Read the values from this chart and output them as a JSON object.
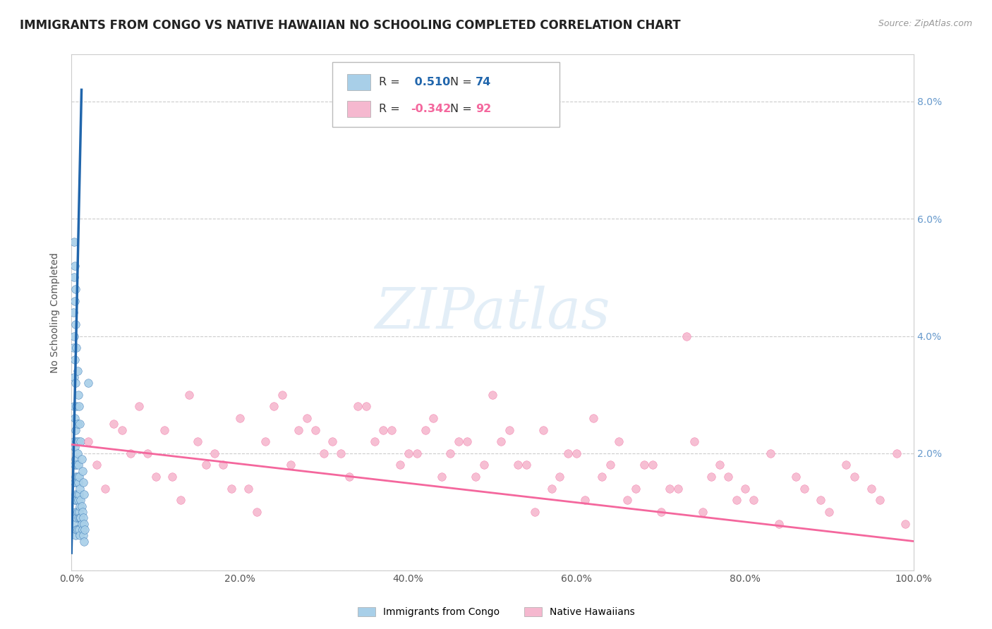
{
  "title": "IMMIGRANTS FROM CONGO VS NATIVE HAWAIIAN NO SCHOOLING COMPLETED CORRELATION CHART",
  "source": "Source: ZipAtlas.com",
  "ylabel": "No Schooling Completed",
  "xlabel": "",
  "legend_blue_r": "0.510",
  "legend_blue_n": "74",
  "legend_pink_r": "-0.342",
  "legend_pink_n": "92",
  "legend_blue_label": "Immigrants from Congo",
  "legend_pink_label": "Native Hawaiians",
  "blue_color": "#a8cfe8",
  "pink_color": "#f5b8cf",
  "blue_line_color": "#2166ac",
  "pink_line_color": "#f4679d",
  "right_axis_label_color": "#6699cc",
  "xlim": [
    0.0,
    1.0
  ],
  "ylim": [
    0.0,
    0.088
  ],
  "xticks": [
    0.0,
    0.2,
    0.4,
    0.6,
    0.8,
    1.0
  ],
  "xtick_labels": [
    "0.0%",
    "20.0%",
    "40.0%",
    "60.0%",
    "80.0%",
    "100.0%"
  ],
  "yticks_right": [
    0.0,
    0.02,
    0.04,
    0.06,
    0.08
  ],
  "ytick_right_labels": [
    "",
    "2.0%",
    "4.0%",
    "6.0%",
    "8.0%"
  ],
  "blue_scatter_x": [
    0.002,
    0.003,
    0.003,
    0.003,
    0.004,
    0.004,
    0.004,
    0.004,
    0.004,
    0.005,
    0.005,
    0.005,
    0.005,
    0.005,
    0.005,
    0.005,
    0.006,
    0.006,
    0.006,
    0.006,
    0.006,
    0.006,
    0.007,
    0.007,
    0.007,
    0.007,
    0.007,
    0.008,
    0.008,
    0.008,
    0.008,
    0.009,
    0.009,
    0.009,
    0.009,
    0.01,
    0.01,
    0.01,
    0.01,
    0.011,
    0.011,
    0.012,
    0.012,
    0.013,
    0.013,
    0.014,
    0.014,
    0.015,
    0.015,
    0.016,
    0.002,
    0.003,
    0.003,
    0.004,
    0.004,
    0.005,
    0.005,
    0.006,
    0.006,
    0.007,
    0.007,
    0.008,
    0.008,
    0.009,
    0.01,
    0.011,
    0.012,
    0.013,
    0.014,
    0.015,
    0.003,
    0.004,
    0.005,
    0.02
  ],
  "blue_scatter_y": [
    0.038,
    0.033,
    0.028,
    0.022,
    0.026,
    0.021,
    0.018,
    0.015,
    0.012,
    0.024,
    0.019,
    0.016,
    0.013,
    0.01,
    0.008,
    0.006,
    0.022,
    0.018,
    0.015,
    0.012,
    0.009,
    0.007,
    0.02,
    0.016,
    0.013,
    0.01,
    0.007,
    0.018,
    0.015,
    0.012,
    0.009,
    0.016,
    0.013,
    0.01,
    0.007,
    0.014,
    0.011,
    0.009,
    0.006,
    0.012,
    0.009,
    0.011,
    0.008,
    0.01,
    0.007,
    0.009,
    0.006,
    0.008,
    0.005,
    0.007,
    0.044,
    0.05,
    0.04,
    0.046,
    0.036,
    0.042,
    0.032,
    0.038,
    0.028,
    0.034,
    0.025,
    0.03,
    0.022,
    0.028,
    0.025,
    0.022,
    0.019,
    0.017,
    0.015,
    0.013,
    0.056,
    0.052,
    0.048,
    0.032
  ],
  "pink_scatter_x": [
    0.02,
    0.05,
    0.08,
    0.11,
    0.14,
    0.17,
    0.2,
    0.23,
    0.26,
    0.29,
    0.32,
    0.35,
    0.38,
    0.41,
    0.44,
    0.47,
    0.5,
    0.53,
    0.56,
    0.59,
    0.62,
    0.65,
    0.68,
    0.71,
    0.74,
    0.77,
    0.8,
    0.83,
    0.86,
    0.89,
    0.92,
    0.95,
    0.98,
    0.03,
    0.06,
    0.09,
    0.12,
    0.15,
    0.18,
    0.21,
    0.24,
    0.27,
    0.3,
    0.33,
    0.36,
    0.39,
    0.42,
    0.45,
    0.48,
    0.51,
    0.54,
    0.57,
    0.6,
    0.63,
    0.66,
    0.69,
    0.72,
    0.75,
    0.78,
    0.81,
    0.84,
    0.87,
    0.9,
    0.93,
    0.96,
    0.99,
    0.04,
    0.07,
    0.1,
    0.13,
    0.16,
    0.19,
    0.22,
    0.25,
    0.28,
    0.31,
    0.34,
    0.37,
    0.4,
    0.43,
    0.46,
    0.49,
    0.52,
    0.55,
    0.58,
    0.61,
    0.64,
    0.67,
    0.7,
    0.73,
    0.76,
    0.79
  ],
  "pink_scatter_y": [
    0.022,
    0.025,
    0.028,
    0.024,
    0.03,
    0.02,
    0.026,
    0.022,
    0.018,
    0.024,
    0.02,
    0.028,
    0.024,
    0.02,
    0.016,
    0.022,
    0.03,
    0.018,
    0.024,
    0.02,
    0.026,
    0.022,
    0.018,
    0.014,
    0.022,
    0.018,
    0.014,
    0.02,
    0.016,
    0.012,
    0.018,
    0.014,
    0.02,
    0.018,
    0.024,
    0.02,
    0.016,
    0.022,
    0.018,
    0.014,
    0.028,
    0.024,
    0.02,
    0.016,
    0.022,
    0.018,
    0.024,
    0.02,
    0.016,
    0.022,
    0.018,
    0.014,
    0.02,
    0.016,
    0.012,
    0.018,
    0.014,
    0.01,
    0.016,
    0.012,
    0.008,
    0.014,
    0.01,
    0.016,
    0.012,
    0.008,
    0.014,
    0.02,
    0.016,
    0.012,
    0.018,
    0.014,
    0.01,
    0.03,
    0.026,
    0.022,
    0.028,
    0.024,
    0.02,
    0.026,
    0.022,
    0.018,
    0.024,
    0.01,
    0.016,
    0.012,
    0.018,
    0.014,
    0.01,
    0.04,
    0.016,
    0.012
  ],
  "blue_trendline_x": [
    0.0,
    0.012
  ],
  "blue_trendline_y": [
    0.003,
    0.082
  ],
  "pink_trendline_x": [
    0.0,
    1.0
  ],
  "pink_trendline_y": [
    0.0215,
    0.005
  ],
  "background_color": "#ffffff",
  "grid_color": "#cccccc",
  "title_fontsize": 12,
  "axis_fontsize": 10,
  "tick_fontsize": 10,
  "legend_fontsize": 12
}
